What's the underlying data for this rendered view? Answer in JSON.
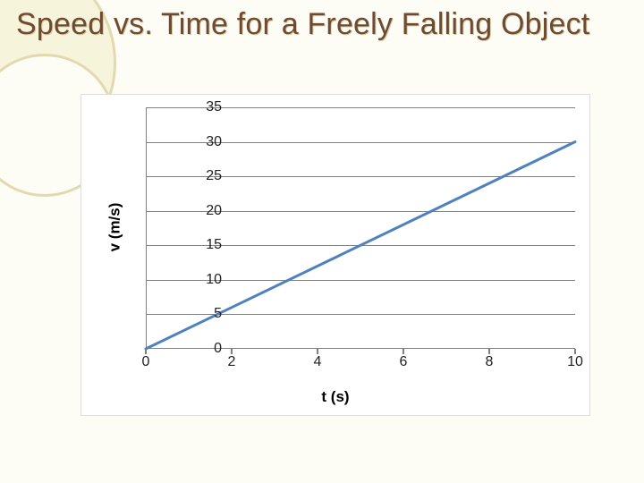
{
  "title": "Speed vs. Time for a Freely Falling Object",
  "background": {
    "page_color": "#fdfdf6",
    "circle_stroke": "#e3d9b0",
    "circle_fill_outer": "#f7f4dc",
    "circle_fill_inner": "#fdfdf6"
  },
  "chart": {
    "type": "line",
    "background_color": "#ffffff",
    "border_color": "#dddddd",
    "axis_color": "#808080",
    "grid_color": "#808080",
    "xlabel": "t (s)",
    "ylabel": "v (m/s)",
    "label_fontsize": 17,
    "label_fontweight": "bold",
    "tick_fontsize": 16,
    "tick_color": "#222222",
    "xlim": [
      0,
      10
    ],
    "ylim": [
      0,
      35
    ],
    "xticks": [
      0,
      2,
      4,
      6,
      8,
      10
    ],
    "yticks": [
      0,
      5,
      10,
      15,
      20,
      25,
      30,
      35
    ],
    "grid_y_values": [
      5,
      10,
      15,
      20,
      25,
      30,
      35
    ],
    "series": {
      "color": "#4f81bd",
      "line_width": 3,
      "x": [
        0,
        10
      ],
      "y": [
        0,
        30
      ]
    }
  }
}
